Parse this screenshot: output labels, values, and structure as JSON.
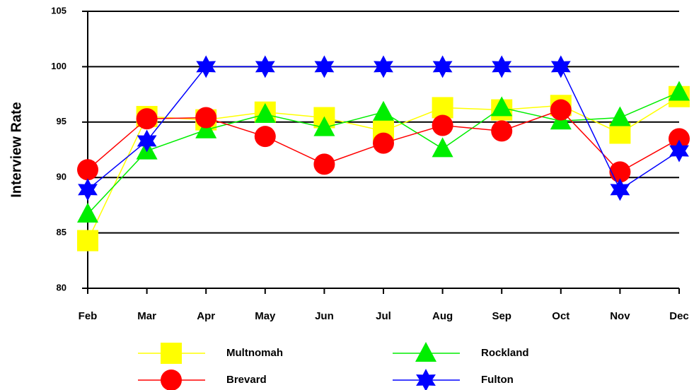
{
  "chart_data": {
    "type": "line",
    "y_label": "Interview Rate",
    "categories": [
      "Feb",
      "Mar",
      "Apr",
      "May",
      "Jun",
      "Jul",
      "Aug",
      "Sep",
      "Oct",
      "Nov",
      "Dec"
    ],
    "ylim": [
      80,
      105
    ],
    "yticks": [
      80,
      85,
      90,
      95,
      100,
      105
    ],
    "grid": true,
    "series": [
      {
        "name": "Multnomah",
        "color": "#ffff00",
        "marker": "square",
        "values": [
          84.3,
          95.5,
          95.2,
          95.9,
          95.4,
          94.2,
          96.3,
          96.1,
          96.5,
          94.0,
          97.3
        ]
      },
      {
        "name": "Rockland",
        "color": "#00ee00",
        "marker": "triangle",
        "values": [
          86.7,
          92.4,
          94.3,
          95.7,
          94.5,
          95.9,
          92.6,
          96.3,
          95.1,
          95.4,
          97.7
        ]
      },
      {
        "name": "Brevard",
        "color": "#ff0000",
        "marker": "circle",
        "values": [
          90.7,
          95.3,
          95.4,
          93.7,
          91.2,
          93.1,
          94.7,
          94.2,
          96.1,
          90.5,
          93.5
        ]
      },
      {
        "name": "Fulton",
        "color": "#0000ff",
        "marker": "star",
        "values": [
          88.9,
          93.3,
          100,
          100,
          100,
          100,
          100,
          100,
          100,
          88.9,
          92.4
        ]
      }
    ]
  }
}
